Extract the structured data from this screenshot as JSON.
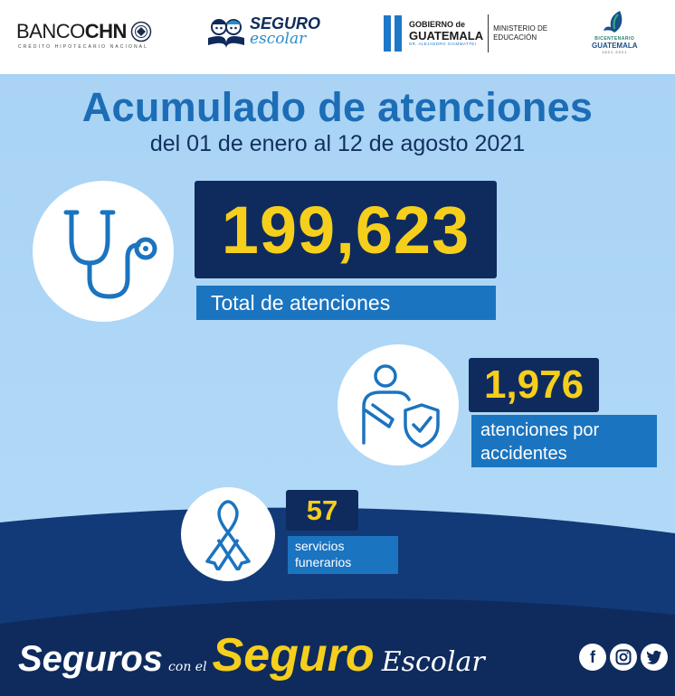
{
  "header": {
    "banco": {
      "name_part1": "BANCO",
      "name_part2": "CHN",
      "subtitle": "CRÉDITO HIPOTECARIO NACIONAL"
    },
    "seguro_escolar": {
      "line1": "SEGURO",
      "line2": "escolar"
    },
    "gobierno": {
      "line1": "GOBIERNO de",
      "line2": "GUATEMALA",
      "line3": "DR. ALEJANDRO GIAMMATTEI",
      "ministerio_line1": "MINISTERIO DE",
      "ministerio_line2": "EDUCACIÓN"
    },
    "bicentenario": {
      "line1": "BICENTENARIO",
      "line2": "GUATEMALA",
      "line3": "1821-2021"
    }
  },
  "main": {
    "title": "Acumulado de atenciones",
    "subtitle": "del 01 de enero al 12 de agosto 2021",
    "stats": [
      {
        "value": "199,623",
        "label": "Total de atenciones",
        "icon": "stethoscope-icon"
      },
      {
        "value": "1,976",
        "label_line1": "atenciones por",
        "label_line2": "accidentes",
        "icon": "injured-person-shield-icon"
      },
      {
        "value": "57",
        "label_line1": "servicios",
        "label_line2": "funerarios",
        "icon": "ribbon-icon"
      }
    ]
  },
  "footer": {
    "slogan_part1": "Seguros",
    "slogan_part2": "con el",
    "slogan_part3": "Seguro",
    "slogan_part4": "Escolar",
    "socials": [
      "facebook-icon",
      "instagram-icon",
      "twitter-icon"
    ]
  },
  "colors": {
    "navy": "#0f2b5e",
    "blue": "#1b74c0",
    "title_blue": "#1c6db6",
    "yellow": "#f6cf1c",
    "background": "#a9d4f5"
  }
}
